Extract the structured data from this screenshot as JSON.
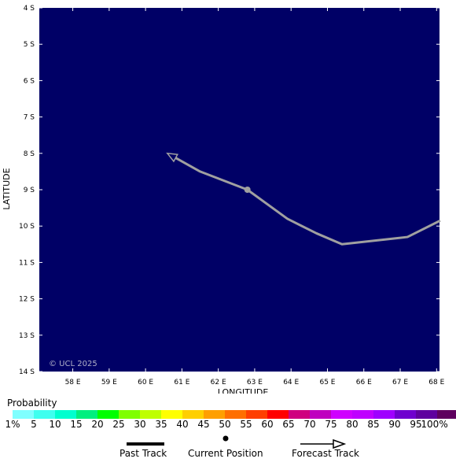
{
  "map": {
    "background_color": "#000066",
    "lat_labels": [
      "4 S",
      "5 S",
      "6 S",
      "7 S",
      "8 S",
      "9 S",
      "10 S",
      "11 S",
      "12 S",
      "13 S",
      "14 S"
    ],
    "lon_labels": [
      "58 E",
      "59 E",
      "60 E",
      "61 E",
      "62 E",
      "63 E",
      "64 E",
      "65 E",
      "66 E",
      "67 E",
      "68 E"
    ],
    "lat_range": [
      -14,
      -4
    ],
    "lon_range": [
      57.08,
      68.08
    ],
    "ylabel": "LATITUDE",
    "xlabel": "LONGITUDE",
    "credit": "© UCL 2025",
    "track_color": "#a0a0a0",
    "forecast_track": [
      {
        "lon": 68.1,
        "lat": -9.85
      },
      {
        "lon": 67.2,
        "lat": -10.3
      },
      {
        "lon": 65.4,
        "lat": -10.5
      },
      {
        "lon": 64.7,
        "lat": -10.2
      },
      {
        "lon": 63.9,
        "lat": -9.8
      },
      {
        "lon": 62.8,
        "lat": -9.0
      },
      {
        "lon": 61.5,
        "lat": -8.5
      },
      {
        "lon": 60.6,
        "lat": -8.0
      }
    ],
    "current_position": {
      "lon": 62.8,
      "lat": -9.0
    }
  },
  "legend": {
    "title": "Probability",
    "colors": [
      "#7fffff",
      "#3fffef",
      "#00ffcf",
      "#00ef7f",
      "#00ff00",
      "#7fff00",
      "#bfff00",
      "#ffff00",
      "#ffcf00",
      "#ff9f00",
      "#ff6f00",
      "#ff3f00",
      "#ff0000",
      "#cf007f",
      "#bf00bf",
      "#cf00ff",
      "#bf00ff",
      "#9f00ff",
      "#6f00cf",
      "#5f009f",
      "#5f005f"
    ],
    "labels": [
      "1%",
      "5",
      "10",
      "15",
      "20",
      "25",
      "30",
      "35",
      "40",
      "45",
      "50",
      "55",
      "60",
      "65",
      "70",
      "75",
      "80",
      "85",
      "90",
      "95",
      "100%"
    ]
  },
  "key": {
    "past_track": "Past Track",
    "current_position": "Current Position",
    "forecast_track": "Forecast Track"
  }
}
